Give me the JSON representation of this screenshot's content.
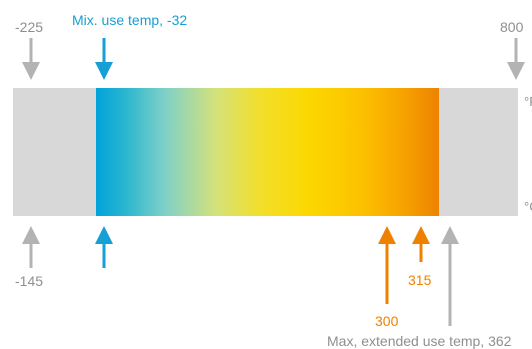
{
  "labels": {
    "top_left": "-225",
    "top_right": "800",
    "min_use": "Mix. use temp, -32",
    "bottom_left": "-145",
    "val_300": "300",
    "val_315": "315",
    "max_extended": "Max, extended use temp, 362",
    "unit_top": "°F",
    "unit_bottom": "°C"
  },
  "colors": {
    "gray_bar": "#d8d8d8",
    "gray_arrow": "#b3b3b3",
    "gray_text": "#8f8f8f",
    "blue": "#169fd4",
    "orange": "#ee8200",
    "gradient_stops": [
      "#00a3d9",
      "#27b5cf",
      "#7ed0c8",
      "#d4e27a",
      "#f2de2a",
      "#fbd800",
      "#fcc000",
      "#f6a100",
      "#ee8200"
    ]
  }
}
